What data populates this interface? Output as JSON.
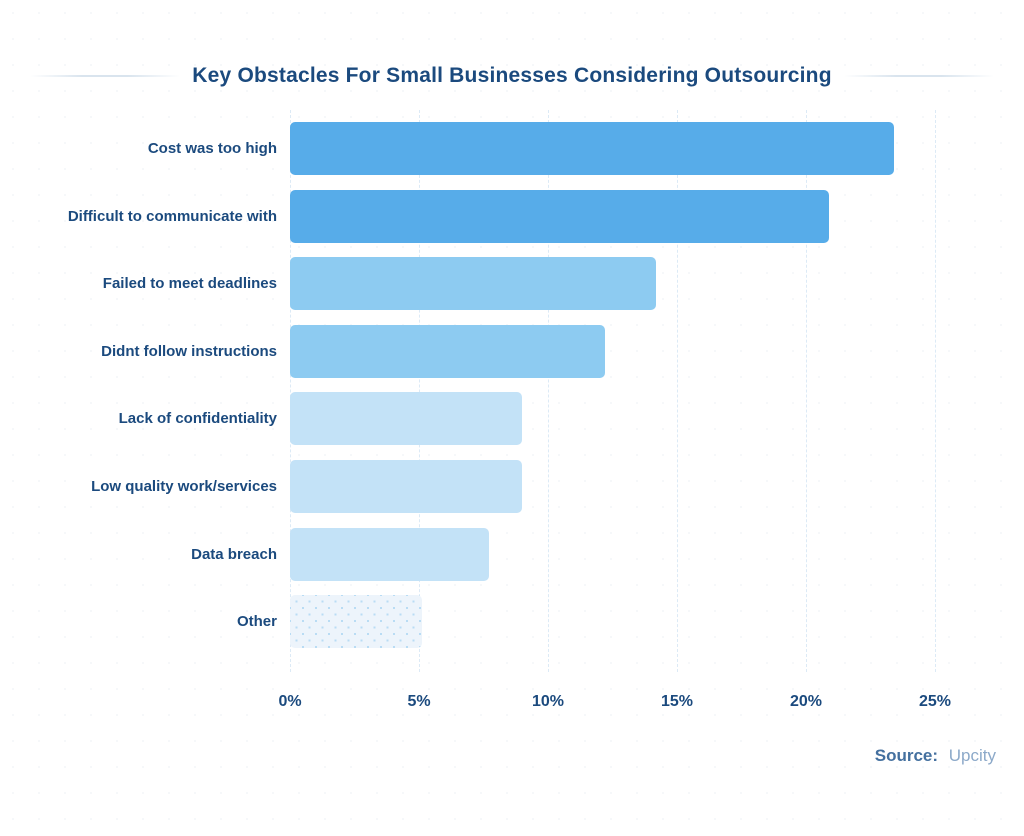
{
  "source": {
    "label": "Source:",
    "value": "Upcity"
  },
  "chart_data": {
    "type": "bar",
    "orientation": "horizontal",
    "title": "Key Obstacles For Small Businesses Considering Outsourcing",
    "categories": [
      "Cost was too high",
      "Difficult to communicate with",
      "Failed to meet deadlines",
      "Didnt follow instructions",
      "Lack of confidentiality",
      "Low quality work/services",
      "Data breach",
      "Other"
    ],
    "values": [
      23.4,
      20.9,
      14.2,
      12.2,
      9.0,
      9.0,
      7.7,
      5.1
    ],
    "unit": "%",
    "xlabel": "",
    "ylabel": "",
    "xlim": [
      0,
      25
    ],
    "xticks": [
      "0%",
      "5%",
      "10%",
      "15%",
      "20%",
      "25%"
    ],
    "xtick_values": [
      0,
      5,
      10,
      15,
      20,
      25
    ],
    "grid": "vertical dashed lines at each tick",
    "legend": "none",
    "bar_colors": [
      "#57ace9",
      "#57ace9",
      "#8dcbf1",
      "#8dcbf1",
      "#c3e2f7",
      "#c3e2f7",
      "#c3e2f7",
      "#edf4fb"
    ],
    "bar_patterns": [
      "solid",
      "solid",
      "solid",
      "solid",
      "solid",
      "solid",
      "solid",
      "dotted"
    ]
  },
  "colors": {
    "title_text": "#1b4a7e",
    "label_text": "#1b4a7e",
    "axis_text": "#1b4a7e",
    "gridline": "#dceaf6",
    "title_line": "#d9e4ee",
    "source_label": "#44709f",
    "source_value": "#8ca9c9",
    "background": "#ffffff"
  }
}
